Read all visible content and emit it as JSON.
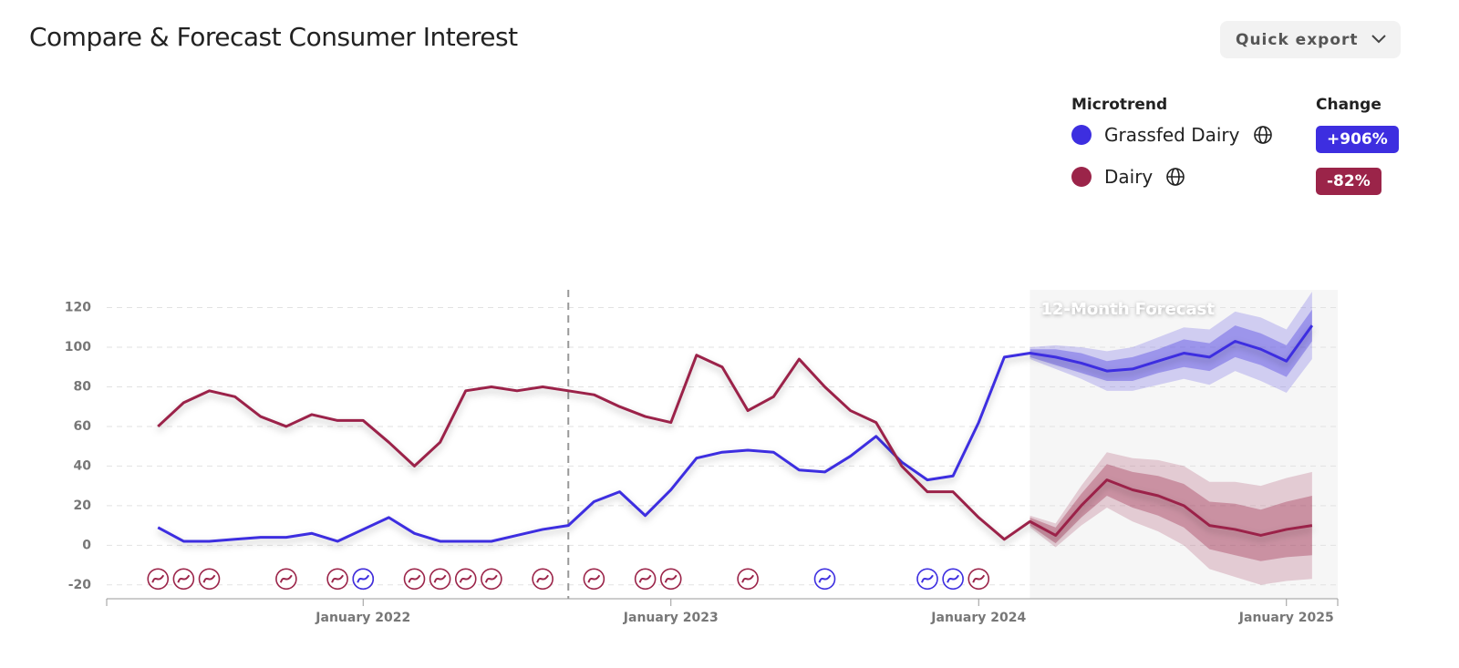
{
  "header": {
    "title": "Compare & Forecast Consumer Interest",
    "export_button": "Quick export"
  },
  "legend": {
    "name_header": "Microtrend",
    "change_header": "Change"
  },
  "chart_data": {
    "type": "line",
    "annotation": "12-Month Forecast",
    "forecast_start": "2024-03",
    "reference_x": "2022-09",
    "xlim": [
      "2021-03",
      "2025-02"
    ],
    "xticks": [
      {
        "value": "2022-01",
        "label": "January 2022"
      },
      {
        "value": "2023-01",
        "label": "January 2023"
      },
      {
        "value": "2024-01",
        "label": "January 2024"
      },
      {
        "value": "2025-01",
        "label": "January 2025"
      }
    ],
    "ylim": [
      -27,
      129
    ],
    "yticks": [
      -20,
      0,
      20,
      40,
      60,
      80,
      100,
      120
    ],
    "grid": true,
    "x": [
      "2021-05",
      "2021-06",
      "2021-07",
      "2021-08",
      "2021-09",
      "2021-10",
      "2021-11",
      "2021-12",
      "2022-01",
      "2022-02",
      "2022-03",
      "2022-04",
      "2022-05",
      "2022-06",
      "2022-07",
      "2022-08",
      "2022-09",
      "2022-10",
      "2022-11",
      "2022-12",
      "2023-01",
      "2023-02",
      "2023-03",
      "2023-04",
      "2023-05",
      "2023-06",
      "2023-07",
      "2023-08",
      "2023-09",
      "2023-10",
      "2023-11",
      "2023-12",
      "2024-01",
      "2024-02",
      "2024-03",
      "2024-04",
      "2024-05",
      "2024-06",
      "2024-07",
      "2024-08",
      "2024-09",
      "2024-10",
      "2024-11",
      "2024-12",
      "2025-01",
      "2025-02"
    ],
    "forecast_x": [
      "2024-03",
      "2024-04",
      "2024-05",
      "2024-06",
      "2024-07",
      "2024-08",
      "2024-09",
      "2024-10",
      "2024-11",
      "2024-12",
      "2025-01",
      "2025-02"
    ],
    "series": [
      {
        "name": "Grassfed Dairy",
        "change": "+906%",
        "color": "#3d2ee0",
        "values": [
          9,
          2,
          2,
          3,
          4,
          4,
          6,
          2,
          8,
          14,
          6,
          2,
          2,
          2,
          5,
          8,
          10,
          22,
          27,
          15,
          28,
          44,
          47,
          48,
          47,
          38,
          37,
          45,
          55,
          42,
          33,
          35,
          62,
          95,
          97,
          95,
          92,
          88,
          89,
          93,
          97,
          95,
          103,
          99,
          93,
          111
        ],
        "band_inner_low": [
          95,
          91,
          87,
          83,
          83,
          87,
          90,
          88,
          95,
          91,
          85,
          103
        ],
        "band_inner_high": [
          99,
          99,
          97,
          93,
          95,
          99,
          104,
          102,
          111,
          107,
          101,
          119
        ],
        "band_outer_low": [
          94,
          89,
          84,
          78,
          78,
          81,
          84,
          81,
          88,
          83,
          77,
          94
        ],
        "band_outer_high": [
          100,
          101,
          100,
          98,
          100,
          105,
          110,
          109,
          118,
          115,
          109,
          128
        ]
      },
      {
        "name": "Dairy",
        "change": "-82%",
        "color": "#9b2449",
        "values": [
          60,
          72,
          78,
          75,
          65,
          60,
          66,
          63,
          63,
          52,
          40,
          52,
          78,
          80,
          78,
          80,
          78,
          76,
          70,
          65,
          62,
          96,
          90,
          68,
          75,
          94,
          80,
          68,
          62,
          40,
          27,
          27,
          14,
          3,
          12,
          5,
          20,
          33,
          28,
          25,
          20,
          10,
          8,
          5,
          8,
          10
        ],
        "band_inner_low": [
          10,
          1,
          14,
          25,
          19,
          15,
          9,
          -2,
          -5,
          -8,
          -6,
          -5
        ],
        "band_inner_high": [
          14,
          9,
          26,
          41,
          37,
          35,
          31,
          22,
          21,
          18,
          22,
          25
        ],
        "band_outer_low": [
          9,
          -1,
          10,
          19,
          12,
          7,
          0,
          -12,
          -16,
          -20,
          -18,
          -17
        ],
        "band_outer_high": [
          15,
          11,
          30,
          47,
          44,
          43,
          40,
          32,
          32,
          30,
          34,
          37
        ]
      }
    ],
    "markers": [
      {
        "x": "2021-05",
        "series": 1
      },
      {
        "x": "2021-06",
        "series": 1
      },
      {
        "x": "2021-07",
        "series": 1
      },
      {
        "x": "2021-10",
        "series": 1
      },
      {
        "x": "2021-12",
        "series": 1
      },
      {
        "x": "2022-01",
        "series": 1
      },
      {
        "x": "2022-01",
        "series": 0
      },
      {
        "x": "2022-03",
        "series": 1
      },
      {
        "x": "2022-04",
        "series": 1
      },
      {
        "x": "2022-05",
        "series": 1
      },
      {
        "x": "2022-06",
        "series": 1
      },
      {
        "x": "2022-08",
        "series": 1
      },
      {
        "x": "2022-10",
        "series": 1
      },
      {
        "x": "2022-12",
        "series": 1
      },
      {
        "x": "2023-01",
        "series": 1
      },
      {
        "x": "2023-04",
        "series": 1
      },
      {
        "x": "2023-07",
        "series": 0
      },
      {
        "x": "2023-11",
        "series": 0
      },
      {
        "x": "2023-12",
        "series": 0
      },
      {
        "x": "2024-01",
        "series": 1
      }
    ]
  }
}
